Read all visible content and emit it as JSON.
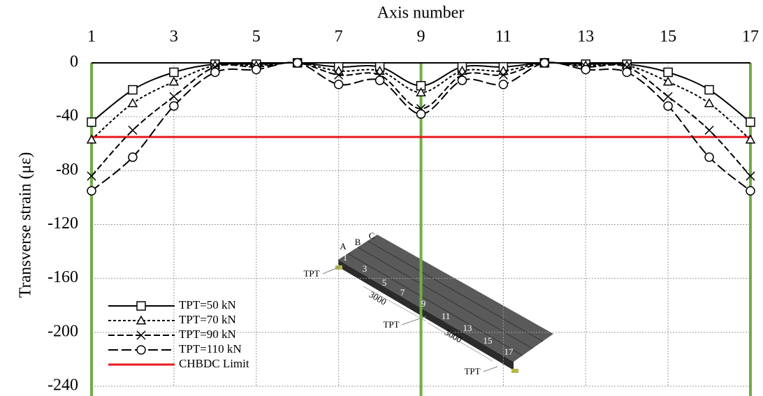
{
  "chart_data": {
    "type": "line",
    "x_label": "Axis number",
    "y_label": "Transverse strain (με)",
    "x": [
      1,
      2,
      3,
      4,
      5,
      6,
      7,
      8,
      9,
      10,
      11,
      12,
      13,
      14,
      15,
      16,
      17
    ],
    "xlim": [
      1,
      17
    ],
    "xticks": [
      1,
      3,
      5,
      7,
      9,
      11,
      13,
      15,
      17
    ],
    "ylim": [
      -240,
      0
    ],
    "yticks": [
      0,
      -40,
      -80,
      -120,
      -160,
      -200,
      -240
    ],
    "grid": true,
    "legend": "lower left",
    "series": [
      {
        "name": "TPT=50 kN",
        "color": "#000000",
        "marker": "square",
        "dash": "solid",
        "values": [
          -44,
          -20,
          -7,
          -1,
          -1,
          0,
          -3,
          -3,
          -17,
          -3,
          -3,
          0,
          -1,
          -1,
          -7,
          -20,
          -44
        ]
      },
      {
        "name": "TPT=70 kN",
        "color": "#000000",
        "marker": "triangle",
        "dash": "short",
        "values": [
          -57,
          -30,
          -14,
          -2,
          -2,
          0,
          -6,
          -6,
          -22,
          -6,
          -6,
          0,
          -2,
          -2,
          -14,
          -30,
          -57
        ]
      },
      {
        "name": "TPT=90 kN",
        "color": "#000000",
        "marker": "x",
        "dash": "medium",
        "values": [
          -84,
          -50,
          -25,
          -3,
          -3,
          0,
          -9,
          -9,
          -34,
          -9,
          -9,
          0,
          -3,
          -3,
          -25,
          -50,
          -84
        ]
      },
      {
        "name": "TPT=110 kN",
        "color": "#000000",
        "marker": "circle",
        "dash": "long",
        "values": [
          -95,
          -70,
          -32,
          -7,
          -5,
          0,
          -16,
          -13,
          -38,
          -13,
          -16,
          0,
          -5,
          -7,
          -32,
          -70,
          -95
        ]
      }
    ],
    "limit": {
      "name": "CHBDC Limit",
      "value": -55,
      "color": "#e8191e"
    },
    "support_lines": {
      "x": [
        1,
        9,
        17
      ],
      "color": "#70ad47"
    },
    "inset_labels": [
      "A",
      "B",
      "C",
      "1",
      "3",
      "5",
      "7",
      "9",
      "11",
      "13",
      "15",
      "17",
      "TPT",
      "TPT",
      "TPT",
      "3000",
      "3000"
    ]
  }
}
